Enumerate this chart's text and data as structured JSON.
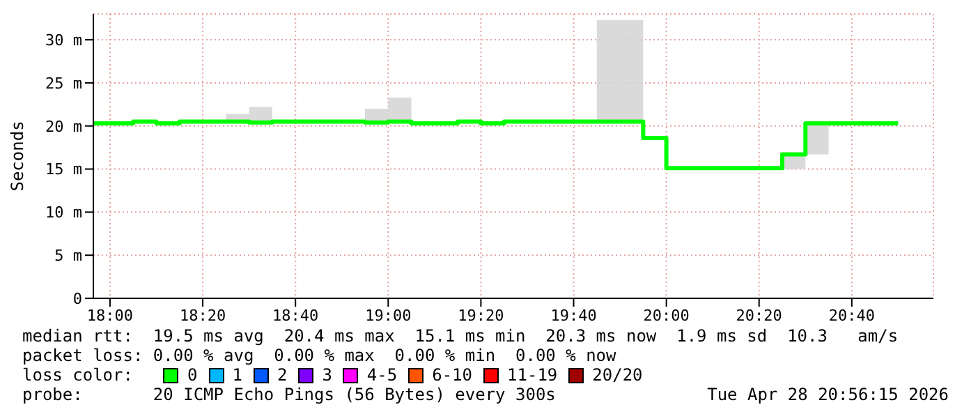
{
  "chart_data": {
    "type": "step",
    "ylabel": "Seconds",
    "x": [
      17.94,
      18,
      18.0833,
      18.1667,
      18.25,
      18.3333,
      18.4167,
      18.5,
      18.5833,
      18.6667,
      18.75,
      18.8333,
      18.9167,
      19,
      19.0833,
      19.1667,
      19.25,
      19.3333,
      19.4167,
      19.5,
      19.5833,
      19.6667,
      19.75,
      19.8333,
      19.9167,
      20,
      20.0833,
      20.1667,
      20.25,
      20.3333,
      20.4167,
      20.5,
      20.5833,
      20.6667,
      20.75,
      20.8333
    ],
    "series": [
      {
        "name": "0",
        "color": "#00ff00",
        "values": [
          20.3,
          20.3,
          20.5,
          20.3,
          20.5,
          20.5,
          20.5,
          20.4,
          20.5,
          20.5,
          20.5,
          20.5,
          20.4,
          20.5,
          20.3,
          20.3,
          20.5,
          20.3,
          20.5,
          20.5,
          20.5,
          20.5,
          20.5,
          20.5,
          18.6,
          15.1,
          15.1,
          15.1,
          15.1,
          15.1,
          16.7,
          20.3,
          20.3,
          20.3,
          20.3,
          20.3
        ],
        "lower": [
          20.3,
          20.3,
          20.5,
          20.3,
          20.5,
          20.5,
          20.5,
          20.4,
          20.5,
          20.5,
          20.5,
          20.5,
          20.4,
          20.5,
          20.3,
          20.3,
          20.5,
          20.3,
          20.5,
          20.5,
          20.5,
          20.5,
          20.5,
          20.5,
          18.6,
          15.1,
          15.1,
          15.1,
          15.1,
          15.1,
          15.0,
          16.7,
          20.3,
          20.3,
          20.3,
          20.3
        ],
        "upper": [
          20.3,
          20.5,
          20.5,
          20.3,
          20.5,
          20.5,
          21.4,
          22.2,
          20.5,
          20.5,
          20.5,
          20.5,
          22.0,
          23.3,
          20.3,
          20.3,
          20.5,
          20.3,
          20.5,
          20.5,
          20.5,
          20.5,
          32.3,
          32.3,
          18.6,
          15.1,
          15.1,
          15.3,
          15.3,
          15.3,
          16.7,
          20.3,
          20.3,
          20.3,
          20.3,
          20.3
        ]
      },
      {
        "name": "1",
        "color": "#00b8ff",
        "values": [
          null,
          null,
          null,
          null,
          null,
          null,
          null,
          null,
          null,
          null,
          null,
          null,
          null,
          null,
          null,
          null,
          null,
          null,
          null,
          null,
          null,
          null,
          null,
          null,
          null,
          null,
          null,
          null,
          null,
          null,
          null,
          null,
          null,
          null,
          null,
          null
        ]
      },
      {
        "name": "2",
        "color": "#0059ff",
        "values": [
          null,
          null,
          null,
          null,
          null,
          null,
          null,
          null,
          null,
          null,
          null,
          null,
          null,
          null,
          null,
          null,
          null,
          null,
          null,
          null,
          null,
          null,
          null,
          null,
          null,
          null,
          null,
          null,
          null,
          null,
          null,
          null,
          null,
          null,
          null,
          null
        ]
      },
      {
        "name": "3",
        "color": "#7e00ff",
        "values": [
          null,
          null,
          null,
          null,
          null,
          null,
          null,
          null,
          null,
          null,
          null,
          null,
          null,
          null,
          null,
          null,
          null,
          null,
          null,
          null,
          null,
          null,
          null,
          null,
          null,
          null,
          null,
          null,
          null,
          null,
          null,
          null,
          null,
          null,
          null,
          null
        ]
      },
      {
        "name": "4-5",
        "color": "#ff00ff",
        "values": [
          null,
          null,
          null,
          null,
          null,
          null,
          null,
          null,
          null,
          null,
          null,
          null,
          null,
          null,
          null,
          null,
          null,
          null,
          null,
          null,
          null,
          null,
          null,
          null,
          null,
          null,
          null,
          null,
          null,
          null,
          null,
          null,
          null,
          null,
          null,
          null
        ]
      },
      {
        "name": "6-10",
        "color": "#ff5500",
        "values": [
          null,
          null,
          null,
          null,
          null,
          null,
          null,
          null,
          null,
          null,
          null,
          null,
          null,
          null,
          null,
          null,
          null,
          null,
          null,
          null,
          null,
          null,
          null,
          null,
          null,
          null,
          null,
          null,
          null,
          null,
          null,
          null,
          null,
          null,
          null,
          null
        ]
      },
      {
        "name": "11-19",
        "color": "#ff0000",
        "values": [
          null,
          null,
          null,
          null,
          null,
          null,
          null,
          null,
          null,
          null,
          null,
          null,
          null,
          null,
          null,
          null,
          null,
          null,
          null,
          null,
          null,
          null,
          null,
          null,
          null,
          null,
          null,
          null,
          null,
          null,
          null,
          null,
          null,
          null,
          null,
          null
        ]
      },
      {
        "name": "20/20",
        "color": "#a10000",
        "values": [
          null,
          null,
          null,
          null,
          null,
          null,
          null,
          null,
          null,
          null,
          null,
          null,
          null,
          null,
          null,
          null,
          null,
          null,
          null,
          null,
          null,
          null,
          null,
          null,
          null,
          null,
          null,
          null,
          null,
          null,
          null,
          null,
          null,
          null,
          null,
          null
        ]
      }
    ],
    "xlim": [
      17.94,
      20.96
    ],
    "xticks": [
      {
        "value": 18,
        "label": "18:00"
      },
      {
        "value": 18.3333,
        "label": "18:20"
      },
      {
        "value": 18.6667,
        "label": "18:40"
      },
      {
        "value": 19,
        "label": "19:00"
      },
      {
        "value": 19.3333,
        "label": "19:20"
      },
      {
        "value": 19.6667,
        "label": "19:40"
      },
      {
        "value": 20,
        "label": "20:00"
      },
      {
        "value": 20.3333,
        "label": "20:20"
      },
      {
        "value": 20.6667,
        "label": "20:40"
      }
    ],
    "ylim": [
      0,
      33
    ],
    "yticks": [
      {
        "value": 0,
        "label": "0"
      },
      {
        "value": 5,
        "label": "5 m"
      },
      {
        "value": 10,
        "label": "10 m"
      },
      {
        "value": 15,
        "label": "15 m"
      },
      {
        "value": 20,
        "label": "20 m"
      },
      {
        "value": 25,
        "label": "25 m"
      },
      {
        "value": 30,
        "label": "30 m"
      }
    ],
    "grid": true,
    "legend": "bottom",
    "legend_title": "loss color:",
    "annotations": [
      "median rtt:  19.5 ms avg  20.4 ms max  15.1 ms min  20.3 ms now  1.9 ms sd  10.3   am/s",
      "packet loss: 0.00 % avg  0.00 % max  0.00 % min  0.00 % now",
      "probe:       20 ICMP Echo Pings (56 Bytes) every 300s",
      "Tue Apr 28 20:56:15 2026"
    ]
  }
}
